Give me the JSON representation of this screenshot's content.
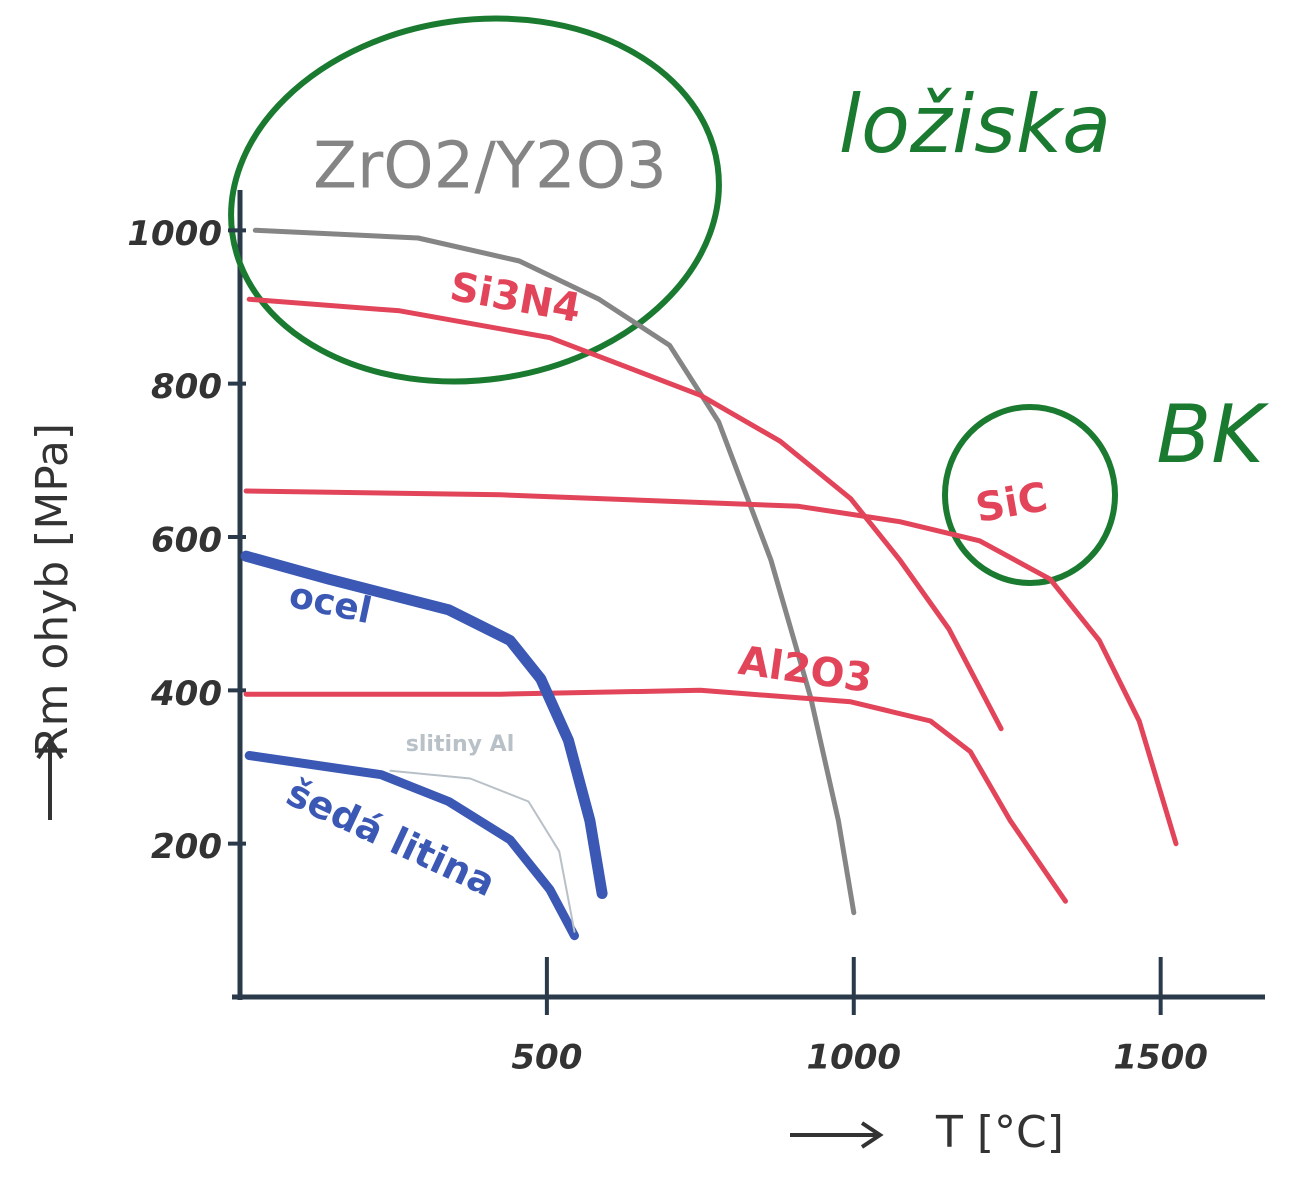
{
  "chart_data": {
    "type": "line",
    "x_label": "T [°C]",
    "y_label": "Rm ohyb [MPa]",
    "xlim": [
      0,
      1670
    ],
    "ylim": [
      0,
      1050
    ],
    "xticks": [
      500,
      1000,
      1500
    ],
    "yticks": [
      200,
      400,
      600,
      800,
      1000
    ],
    "annotations": [
      "ložiska",
      "BK"
    ],
    "series": [
      {
        "name": "ZrO2/Y2O3",
        "color": "#858585",
        "x": [
          25,
          290,
          455,
          585,
          700,
          780,
          865,
          930,
          975,
          1000
        ],
        "values": [
          1000,
          990,
          960,
          910,
          850,
          750,
          570,
          390,
          230,
          110
        ]
      },
      {
        "name": "Si3N4",
        "color": "#e2445a",
        "x": [
          15,
          260,
          505,
          750,
          880,
          995,
          1075,
          1155,
          1240
        ],
        "values": [
          910,
          895,
          860,
          785,
          725,
          650,
          570,
          480,
          350
        ]
      },
      {
        "name": "SiC",
        "color": "#e2445a",
        "x": [
          10,
          425,
          910,
          1075,
          1205,
          1320,
          1400,
          1465,
          1525
        ],
        "values": [
          660,
          655,
          640,
          620,
          595,
          545,
          465,
          360,
          200
        ]
      },
      {
        "name": "Al2O3",
        "color": "#e2445a",
        "x": [
          10,
          425,
          750,
          995,
          1125,
          1190,
          1255,
          1345
        ],
        "values": [
          395,
          395,
          400,
          385,
          360,
          320,
          230,
          125
        ]
      },
      {
        "name": "ocel",
        "color": "#3a58b4",
        "x": [
          10,
          145,
          340,
          440,
          490,
          535,
          570,
          590
        ],
        "values": [
          575,
          545,
          505,
          465,
          415,
          335,
          230,
          135
        ]
      },
      {
        "name": "šedá litina",
        "color": "#3a58b4",
        "x": [
          15,
          230,
          340,
          440,
          505,
          545
        ],
        "values": [
          315,
          290,
          255,
          205,
          140,
          80
        ]
      },
      {
        "name": "slitiny Al",
        "color": "#b8c0c8",
        "x": [
          245,
          375,
          470,
          520,
          545
        ],
        "values": [
          295,
          285,
          255,
          190,
          85
        ]
      }
    ]
  }
}
